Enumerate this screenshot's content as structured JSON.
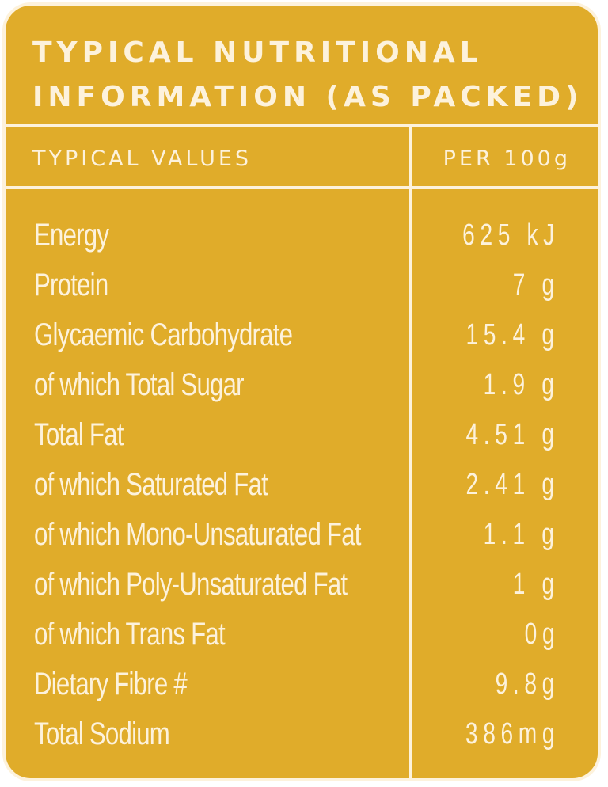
{
  "title": {
    "line1": "TYPICAL NUTRITIONAL",
    "line2": "INFORMATION (AS PACKED)"
  },
  "columns": {
    "left": "TYPICAL VALUES",
    "right": "PER 100g"
  },
  "rows": [
    {
      "label": "Energy",
      "value": "625 kJ"
    },
    {
      "label": "Protein",
      "value": "7 g"
    },
    {
      "label": "Glycaemic Carbohydrate",
      "value": "15.4 g"
    },
    {
      "label": "of which Total Sugar",
      "value": "1.9 g"
    },
    {
      "label": "Total Fat",
      "value": "4.51 g"
    },
    {
      "label": "of which Saturated Fat",
      "value": "2.41 g"
    },
    {
      "label": "of which Mono-Unsaturated Fat",
      "value": "1.1 g"
    },
    {
      "label": "of which Poly-Unsaturated Fat",
      "value": "1 g"
    },
    {
      "label": "of which Trans Fat",
      "value": "0g"
    },
    {
      "label": "Dietary Fibre #",
      "value": "9.8g"
    },
    {
      "label": "Total Sodium",
      "value": "386mg"
    }
  ],
  "colors": {
    "background": "#e0ac2a",
    "foreground": "#fdf2dc"
  }
}
